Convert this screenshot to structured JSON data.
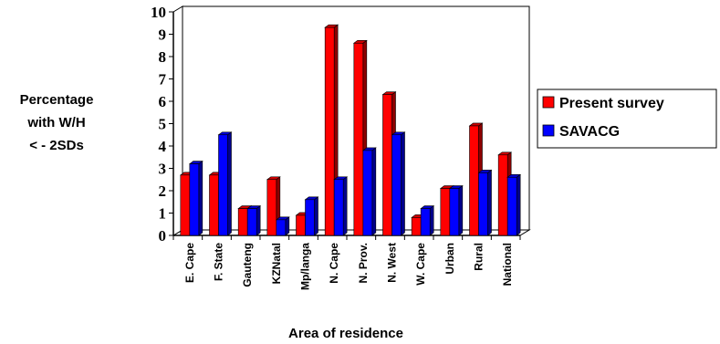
{
  "chart_data": {
    "type": "bar",
    "title": "",
    "ylabel_lines": [
      "Percentage",
      "with W/H",
      "< - 2SDs"
    ],
    "xlabel": "Area of residence",
    "ylim": [
      0,
      10
    ],
    "yticks": [
      0,
      1,
      2,
      3,
      4,
      5,
      6,
      7,
      8,
      9,
      10
    ],
    "grid": false,
    "legend_position": "right",
    "categories": [
      "E. Cape",
      "F. State",
      "Gauteng",
      "KZNatal",
      "Mp/langa",
      "N. Cape",
      "N. Prov.",
      "N. West",
      "W. Cape",
      "Urban",
      "Rural",
      "National"
    ],
    "series": [
      {
        "name": "Present survey",
        "color": "#ff0000",
        "values": [
          2.7,
          2.7,
          1.2,
          2.5,
          0.9,
          9.3,
          8.6,
          6.3,
          0.8,
          2.1,
          4.9,
          3.6
        ]
      },
      {
        "name": "SAVACG",
        "color": "#0000ff",
        "values": [
          3.2,
          4.5,
          1.2,
          0.7,
          1.6,
          2.5,
          3.8,
          4.5,
          1.2,
          2.1,
          2.8,
          2.6
        ]
      }
    ]
  }
}
